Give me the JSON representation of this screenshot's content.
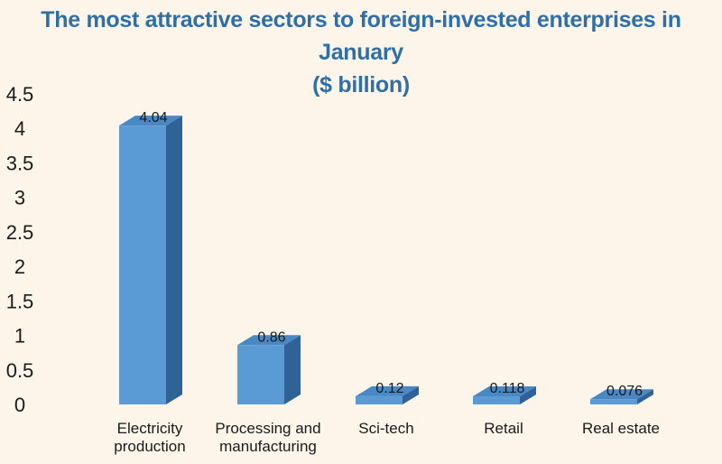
{
  "chart_data": {
    "type": "bar",
    "title": "The most attractive sectors to foreign-invested enterprises in January",
    "subtitle": "($ billion)",
    "categories": [
      [
        "Electricity",
        "production"
      ],
      [
        "Processing and",
        "manufacturing"
      ],
      [
        "Sci-tech"
      ],
      [
        "Retail"
      ],
      [
        "Real estate"
      ]
    ],
    "values": [
      4.04,
      0.86,
      0.12,
      0.118,
      0.076
    ],
    "data_labels": [
      "4.04",
      "0.86",
      "0.12",
      "0.118",
      "0.076"
    ],
    "y_ticks": [
      "0",
      "0.5",
      "1",
      "1.5",
      "2",
      "2.5",
      "3",
      "3.5",
      "4",
      "4.5"
    ],
    "ylim": [
      0,
      4.5
    ],
    "grid": false,
    "legend": "none",
    "bar_style": "3d",
    "colors": {
      "bar_front": "#5b9bd5",
      "bar_side": "#2f6296",
      "bar_top": "#4a88c4",
      "title": "#2f6fa7",
      "background": "#fdf5ea"
    }
  }
}
